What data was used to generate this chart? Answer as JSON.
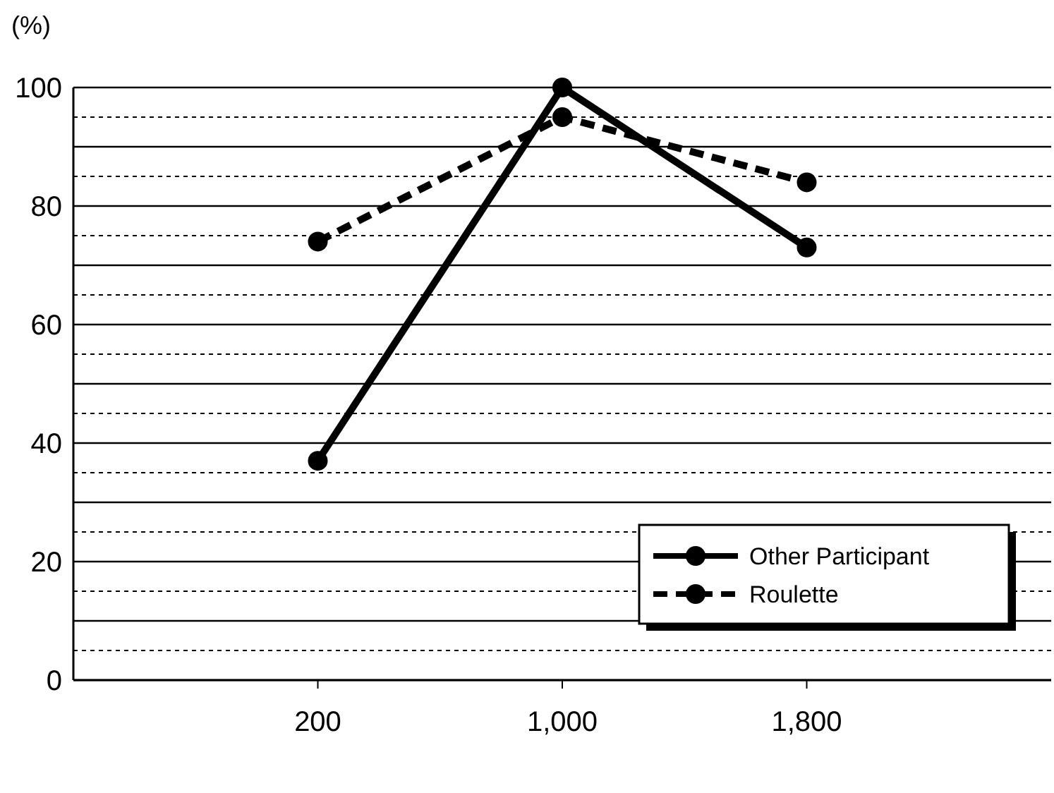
{
  "chart_data": {
    "type": "line",
    "ylabel": "(%)",
    "categories": [
      "200",
      "1,000",
      "1,800"
    ],
    "series": [
      {
        "name": "Other Participant",
        "color": "#000000",
        "values": [
          37,
          100,
          73
        ],
        "line_style": "solid"
      },
      {
        "name": "Roulette",
        "color": "#000000",
        "values": [
          74,
          95,
          84
        ],
        "line_style": "dashed"
      }
    ],
    "ylim": [
      0,
      100
    ],
    "yticks": [
      0,
      {
        "value": 5,
        "label": null
      },
      {
        "value": 10,
        "label": null
      },
      {
        "value": 15,
        "label": null
      },
      20,
      {
        "value": 25,
        "label": null
      },
      {
        "value": 30,
        "label": null
      },
      {
        "value": 35,
        "label": null
      },
      40,
      {
        "value": 45,
        "label": null
      },
      {
        "value": 50,
        "label": null
      },
      {
        "value": 55,
        "label": null
      },
      60,
      {
        "value": 65,
        "label": null
      },
      {
        "value": 70,
        "label": null
      },
      {
        "value": 75,
        "label": null
      },
      80,
      {
        "value": 85,
        "label": null
      },
      {
        "value": 90,
        "label": null
      },
      {
        "value": 95,
        "label": null
      },
      100
    ],
    "grid": "y",
    "legend": "bottom right",
    "marker": "circle"
  }
}
